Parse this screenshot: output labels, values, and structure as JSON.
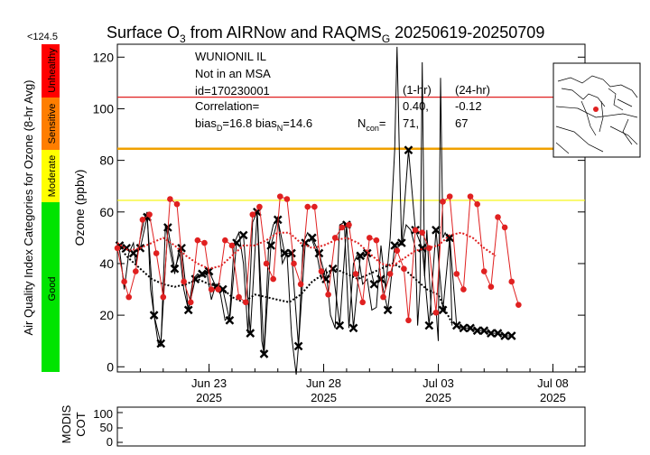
{
  "chart_data": {
    "type": "line",
    "title": {
      "main": "Surface O",
      "sub": "3",
      "mid": " from AIRNow and RAQMS",
      "sub2": "G",
      "tail": " 20250619-20250709"
    },
    "ylabel": "Ozone (ppbv)",
    "ylim": [
      -2,
      125
    ],
    "yticks": [
      0,
      20,
      40,
      60,
      80,
      100,
      120
    ],
    "xticks": [
      {
        "label": "Jun 23",
        "year": "2025",
        "day": 4
      },
      {
        "label": "Jun 28",
        "year": "2025",
        "day": 9
      },
      {
        "label": "Jul 03",
        "year": "2025",
        "day": 14
      },
      {
        "label": "Jul 08",
        "year": "2025",
        "day": 19
      }
    ],
    "xlim_days": [
      0,
      20.4
    ],
    "thresholds": [
      {
        "value": 104.5,
        "color": "#e02020"
      },
      {
        "value": 84.5,
        "color": "#f0a000"
      },
      {
        "value": 64.5,
        "color": "#f5f500"
      }
    ],
    "station": {
      "name": "WUNIONIL IL",
      "msa": "Not in an MSA",
      "id": "id=170230001",
      "corr_label": "Correlation=",
      "hdr_1hr": "(1-hr)",
      "hdr_24hr": "(24-hr)",
      "corr_1hr": "0.40,",
      "corr_24hr": "-0.12",
      "bias_d": "bias",
      "bias_d_sub": "D",
      "bias_d_val": "=16.8 bias",
      "bias_n_sub": "N",
      "bias_n_val": "=14.6",
      "ncon": "N",
      "ncon_sub": "con",
      "ncon_eq": "=",
      "ncon_1hr": "71,",
      "ncon_24hr": "67"
    },
    "aqi": {
      "title": "Air Quality Index Categories for Ozone (8-hr Avg)",
      "max_label": "<124.5",
      "categories": [
        {
          "name": "Good",
          "color": "#00e400"
        },
        {
          "name": "Moderate",
          "color": "#ffff00"
        },
        {
          "name": "Sensitive",
          "color": "#ff7e00"
        },
        {
          "name": "Unhealthy",
          "color": "#ff0000"
        }
      ]
    },
    "modis": {
      "label1": "MODIS",
      "label2": "COT",
      "yticks": [
        "100",
        "50",
        "0"
      ]
    },
    "series": [
      {
        "role": "observed 8-hr",
        "color": "#000000",
        "marker": "x",
        "points": [
          [
            0.1,
            47
          ],
          [
            0.4,
            46
          ],
          [
            0.7,
            44
          ],
          [
            1.0,
            46
          ],
          [
            1.3,
            58
          ],
          [
            1.6,
            20
          ],
          [
            1.9,
            9
          ],
          [
            2.2,
            54
          ],
          [
            2.5,
            38
          ],
          [
            2.8,
            46
          ],
          [
            3.1,
            22
          ],
          [
            3.4,
            34
          ],
          [
            3.7,
            36
          ],
          [
            4.0,
            37
          ],
          [
            4.3,
            31
          ],
          [
            4.6,
            30
          ],
          [
            4.9,
            18
          ],
          [
            5.2,
            48
          ],
          [
            5.5,
            51
          ],
          [
            5.8,
            13
          ],
          [
            6.1,
            60
          ],
          [
            6.4,
            5
          ],
          [
            6.7,
            47
          ],
          [
            7.0,
            57
          ],
          [
            7.3,
            44
          ],
          [
            7.6,
            44
          ],
          [
            7.9,
            8
          ],
          [
            8.2,
            48
          ],
          [
            8.5,
            50
          ],
          [
            8.8,
            44
          ],
          [
            9.1,
            34
          ],
          [
            9.4,
            38
          ],
          [
            9.7,
            16
          ],
          [
            10.0,
            55
          ],
          [
            10.3,
            15
          ],
          [
            10.6,
            43
          ],
          [
            10.9,
            44
          ],
          [
            11.2,
            32
          ],
          [
            11.5,
            34
          ],
          [
            11.8,
            22
          ],
          [
            12.1,
            47
          ],
          [
            12.4,
            48
          ],
          [
            12.7,
            84
          ],
          [
            13.0,
            53
          ],
          [
            13.3,
            46
          ],
          [
            13.6,
            16
          ],
          [
            13.9,
            53
          ],
          [
            14.2,
            22
          ],
          [
            14.5,
            50
          ],
          [
            14.8,
            16
          ],
          [
            15.1,
            15
          ],
          [
            15.4,
            15
          ],
          [
            15.7,
            14
          ],
          [
            16.0,
            14
          ],
          [
            16.3,
            13
          ],
          [
            16.6,
            13
          ],
          [
            16.9,
            12
          ],
          [
            17.2,
            12
          ]
        ]
      },
      {
        "role": "observed 1-hr",
        "color": "#000000",
        "points": [
          [
            0.0,
            47
          ],
          [
            0.1,
            45
          ],
          [
            0.2,
            38
          ],
          [
            0.3,
            30
          ],
          [
            0.5,
            44
          ],
          [
            0.7,
            48
          ],
          [
            0.8,
            40
          ],
          [
            1.0,
            50
          ],
          [
            1.2,
            58
          ],
          [
            1.3,
            60
          ],
          [
            1.45,
            30
          ],
          [
            1.6,
            20
          ],
          [
            1.8,
            8
          ],
          [
            1.9,
            8
          ],
          [
            2.1,
            55
          ],
          [
            2.3,
            45
          ],
          [
            2.5,
            36
          ],
          [
            2.7,
            46
          ],
          [
            2.9,
            30
          ],
          [
            3.1,
            22
          ],
          [
            3.3,
            34
          ],
          [
            3.5,
            36
          ],
          [
            3.7,
            35
          ],
          [
            3.9,
            37
          ],
          [
            4.1,
            26
          ],
          [
            4.3,
            32
          ],
          [
            4.5,
            28
          ],
          [
            4.7,
            18
          ],
          [
            4.9,
            20
          ],
          [
            5.1,
            48
          ],
          [
            5.3,
            52
          ],
          [
            5.5,
            40
          ],
          [
            5.7,
            13
          ],
          [
            5.9,
            56
          ],
          [
            6.1,
            60
          ],
          [
            6.3,
            10
          ],
          [
            6.4,
            5
          ],
          [
            6.6,
            47
          ],
          [
            6.8,
            55
          ],
          [
            7.0,
            58
          ],
          [
            7.2,
            40
          ],
          [
            7.4,
            44
          ],
          [
            7.6,
            12
          ],
          [
            7.8,
            -3
          ],
          [
            7.9,
            8
          ],
          [
            8.1,
            48
          ],
          [
            8.3,
            52
          ],
          [
            8.5,
            49
          ],
          [
            8.7,
            44
          ],
          [
            8.9,
            34
          ],
          [
            9.1,
            38
          ],
          [
            9.3,
            20
          ],
          [
            9.5,
            15
          ],
          [
            9.7,
            55
          ],
          [
            9.9,
            56
          ],
          [
            10.1,
            15
          ],
          [
            10.3,
            40
          ],
          [
            10.5,
            44
          ],
          [
            10.7,
            32
          ],
          [
            10.9,
            34
          ],
          [
            11.1,
            22
          ],
          [
            11.3,
            23
          ],
          [
            11.5,
            47
          ],
          [
            11.7,
            30
          ],
          [
            11.9,
            50
          ],
          [
            12.1,
            84
          ],
          [
            12.2,
            124
          ],
          [
            12.3,
            84
          ],
          [
            12.4,
            47
          ],
          [
            12.6,
            55
          ],
          [
            12.8,
            53
          ],
          [
            13.0,
            46
          ],
          [
            13.1,
            16
          ],
          [
            13.2,
            30
          ],
          [
            13.3,
            118
          ],
          [
            13.4,
            35
          ],
          [
            13.5,
            53
          ],
          [
            13.7,
            20
          ],
          [
            13.9,
            22
          ],
          [
            14.0,
            10
          ],
          [
            14.1,
            112
          ],
          [
            14.2,
            50
          ],
          [
            14.3,
            52
          ],
          [
            14.5,
            48
          ],
          [
            14.6,
            16
          ]
        ]
      },
      {
        "role": "observed smooth",
        "color": "#000000",
        "dotted": true,
        "points": [
          [
            0.0,
            47
          ],
          [
            0.5,
            42
          ],
          [
            1.0,
            38
          ],
          [
            1.5,
            34
          ],
          [
            2.0,
            32
          ],
          [
            2.5,
            31
          ],
          [
            3.0,
            32
          ],
          [
            3.5,
            34
          ],
          [
            4.0,
            32
          ],
          [
            4.5,
            31
          ],
          [
            5.0,
            27
          ],
          [
            5.5,
            25
          ],
          [
            6.0,
            28
          ],
          [
            6.5,
            27
          ],
          [
            7.0,
            26
          ],
          [
            7.5,
            25
          ],
          [
            8.0,
            28
          ],
          [
            8.5,
            33
          ],
          [
            9.0,
            36
          ],
          [
            9.5,
            38
          ],
          [
            10.0,
            36
          ],
          [
            10.5,
            34
          ],
          [
            11.0,
            36
          ],
          [
            11.5,
            38
          ],
          [
            12.0,
            40
          ],
          [
            12.5,
            38
          ],
          [
            13.0,
            34
          ],
          [
            13.5,
            30
          ],
          [
            14.0,
            28
          ],
          [
            14.3,
            22
          ],
          [
            14.6,
            17
          ]
        ]
      },
      {
        "role": "model",
        "color": "#e02020",
        "marker": "dot",
        "points": [
          [
            0.0,
            46
          ],
          [
            0.3,
            33
          ],
          [
            0.5,
            27
          ],
          [
            0.8,
            37
          ],
          [
            1.1,
            57
          ],
          [
            1.4,
            59
          ],
          [
            1.7,
            44
          ],
          [
            2.0,
            27
          ],
          [
            2.3,
            65
          ],
          [
            2.6,
            63
          ],
          [
            2.9,
            33
          ],
          [
            3.2,
            25
          ],
          [
            3.5,
            49
          ],
          [
            3.8,
            48
          ],
          [
            4.1,
            30
          ],
          [
            4.4,
            30
          ],
          [
            4.7,
            49
          ],
          [
            5.0,
            47
          ],
          [
            5.3,
            27
          ],
          [
            5.6,
            25
          ],
          [
            5.9,
            59
          ],
          [
            6.2,
            62
          ],
          [
            6.5,
            40
          ],
          [
            6.8,
            34
          ],
          [
            7.1,
            66
          ],
          [
            7.4,
            65
          ],
          [
            7.7,
            40
          ],
          [
            8.0,
            32
          ],
          [
            8.3,
            62
          ],
          [
            8.6,
            62
          ],
          [
            8.9,
            37
          ],
          [
            9.2,
            28
          ],
          [
            9.5,
            50
          ],
          [
            9.8,
            54
          ],
          [
            10.1,
            55
          ],
          [
            10.4,
            36
          ],
          [
            10.7,
            25
          ],
          [
            11.0,
            50
          ],
          [
            11.3,
            49
          ],
          [
            11.6,
            27
          ],
          [
            11.9,
            36
          ],
          [
            12.2,
            45
          ],
          [
            12.5,
            38
          ],
          [
            12.7,
            18
          ],
          [
            13.0,
            53
          ],
          [
            13.3,
            52
          ],
          [
            13.6,
            46
          ],
          [
            13.9,
            21
          ],
          [
            14.2,
            64
          ],
          [
            14.5,
            66
          ],
          [
            14.8,
            36
          ],
          [
            15.1,
            30
          ],
          [
            15.4,
            66
          ],
          [
            15.7,
            63
          ],
          [
            16.0,
            37
          ],
          [
            16.3,
            31
          ],
          [
            16.6,
            58
          ],
          [
            16.9,
            54
          ],
          [
            17.2,
            33
          ],
          [
            17.5,
            24
          ]
        ]
      },
      {
        "role": "model smooth",
        "color": "#e02020",
        "dotted": true,
        "points": [
          [
            0.0,
            48
          ],
          [
            0.5,
            45
          ],
          [
            1.0,
            46
          ],
          [
            1.5,
            48
          ],
          [
            2.0,
            50
          ],
          [
            2.5,
            47
          ],
          [
            3.0,
            43
          ],
          [
            3.5,
            40
          ],
          [
            4.0,
            38
          ],
          [
            4.5,
            39
          ],
          [
            5.0,
            43
          ],
          [
            5.5,
            47
          ],
          [
            6.0,
            47
          ],
          [
            6.5,
            49
          ],
          [
            7.0,
            52
          ],
          [
            7.5,
            52
          ],
          [
            8.0,
            48
          ],
          [
            8.5,
            46
          ],
          [
            9.0,
            47
          ],
          [
            9.5,
            49
          ],
          [
            10.0,
            50
          ],
          [
            10.5,
            48
          ],
          [
            11.0,
            44
          ],
          [
            11.5,
            40
          ],
          [
            12.0,
            39
          ],
          [
            12.5,
            42
          ],
          [
            13.0,
            45
          ],
          [
            13.5,
            46
          ],
          [
            14.0,
            47
          ],
          [
            14.5,
            51
          ],
          [
            15.0,
            52
          ],
          [
            15.5,
            50
          ],
          [
            16.0,
            46
          ],
          [
            16.5,
            43
          ]
        ]
      }
    ]
  }
}
